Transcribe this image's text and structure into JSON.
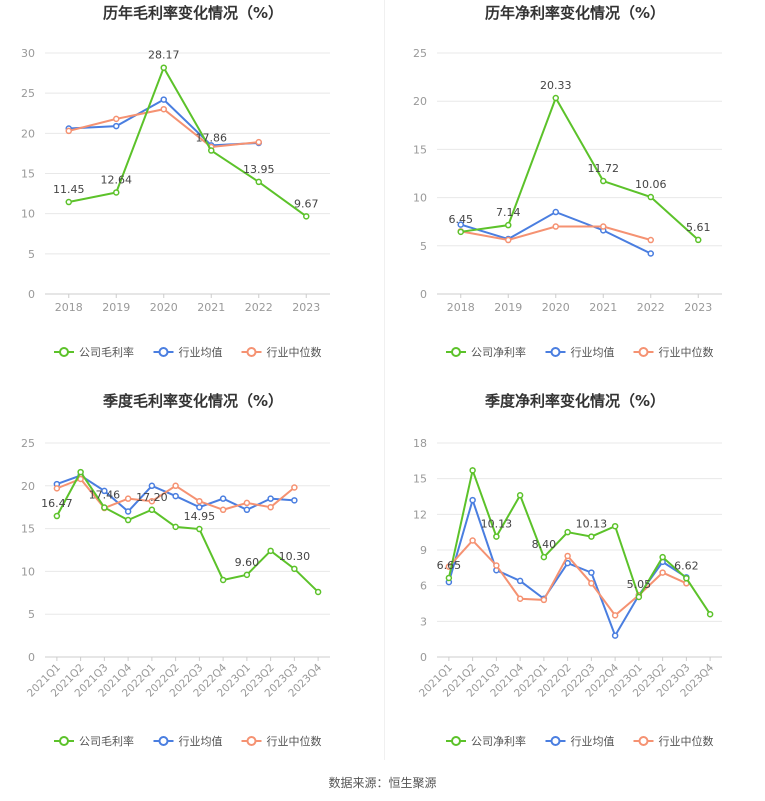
{
  "colors": {
    "company": "#5cc22a",
    "industry_avg": "#4a7ee0",
    "industry_median": "#f59272",
    "grid": "#e8e8e8",
    "axis_text": "#999999",
    "title_text": "#333333"
  },
  "legend": {
    "company_gross": "公司毛利率",
    "company_net": "公司净利率",
    "avg": "行业均值",
    "median": "行业中位数"
  },
  "footer": "数据来源：恒生聚源",
  "chart_data": [
    {
      "id": "annual-gross",
      "type": "line",
      "title": "历年毛利率变化情况（%）",
      "categories": [
        "2018",
        "2019",
        "2020",
        "2021",
        "2022",
        "2023"
      ],
      "ylim": [
        0,
        30
      ],
      "yticks": [
        0,
        5,
        10,
        15,
        20,
        25,
        30
      ],
      "grid": true,
      "legend_position": "bottom",
      "series": [
        {
          "name": "公司毛利率",
          "role": "company",
          "values": [
            11.45,
            12.64,
            28.17,
            17.86,
            13.95,
            9.67
          ],
          "labels": [
            "11.45",
            "12.64",
            "28.17",
            "17.86",
            "13.95",
            "9.67"
          ]
        },
        {
          "name": "行业均值",
          "role": "avg",
          "values": [
            20.6,
            20.9,
            24.2,
            18.5,
            18.8,
            null
          ]
        },
        {
          "name": "行业中位数",
          "role": "median",
          "values": [
            20.3,
            21.8,
            23.0,
            18.3,
            18.9,
            null
          ]
        }
      ]
    },
    {
      "id": "annual-net",
      "type": "line",
      "title": "历年净利率变化情况（%）",
      "categories": [
        "2018",
        "2019",
        "2020",
        "2021",
        "2022",
        "2023"
      ],
      "ylim": [
        0,
        25
      ],
      "yticks": [
        0,
        5,
        10,
        15,
        20,
        25
      ],
      "grid": true,
      "legend_position": "bottom",
      "series": [
        {
          "name": "公司净利率",
          "role": "company",
          "values": [
            6.45,
            7.14,
            20.33,
            11.72,
            10.06,
            5.61
          ],
          "labels": [
            "6.45",
            "7.14",
            "20.33",
            "11.72",
            "10.06",
            "5.61"
          ]
        },
        {
          "name": "行业均值",
          "role": "avg",
          "values": [
            7.2,
            5.7,
            8.5,
            6.6,
            4.2,
            null
          ]
        },
        {
          "name": "行业中位数",
          "role": "median",
          "values": [
            6.5,
            5.6,
            7.0,
            7.0,
            5.6,
            null
          ]
        }
      ]
    },
    {
      "id": "quarterly-gross",
      "type": "line",
      "title": "季度毛利率变化情况（%）",
      "categories": [
        "2021Q1",
        "2021Q2",
        "2021Q3",
        "2021Q4",
        "2022Q1",
        "2022Q2",
        "2022Q3",
        "2022Q4",
        "2023Q1",
        "2023Q2",
        "2023Q3",
        "2023Q4"
      ],
      "ylim": [
        0,
        25
      ],
      "yticks": [
        0,
        5,
        10,
        15,
        20,
        25
      ],
      "grid": true,
      "legend_position": "bottom",
      "series": [
        {
          "name": "公司毛利率",
          "role": "company",
          "values": [
            16.47,
            21.6,
            17.46,
            16.0,
            17.2,
            15.2,
            14.95,
            9.0,
            9.6,
            12.4,
            10.3,
            7.6
          ],
          "labels": [
            "16.47",
            null,
            "17.46",
            null,
            "17.20",
            null,
            "14.95",
            null,
            "9.60",
            null,
            "10.30",
            null
          ]
        },
        {
          "name": "行业均值",
          "role": "avg",
          "values": [
            20.2,
            21.2,
            19.4,
            17.0,
            20.0,
            18.8,
            17.5,
            18.5,
            17.2,
            18.5,
            18.3,
            null
          ]
        },
        {
          "name": "行业中位数",
          "role": "median",
          "values": [
            19.7,
            20.8,
            17.4,
            18.5,
            18.2,
            20.0,
            18.2,
            17.2,
            18.0,
            17.5,
            19.8,
            null
          ]
        }
      ]
    },
    {
      "id": "quarterly-net",
      "type": "line",
      "title": "季度净利率变化情况（%）",
      "categories": [
        "2021Q1",
        "2021Q2",
        "2021Q3",
        "2021Q4",
        "2022Q1",
        "2022Q2",
        "2022Q3",
        "2022Q4",
        "2023Q1",
        "2023Q2",
        "2023Q3",
        "2023Q4"
      ],
      "ylim": [
        0,
        18
      ],
      "yticks": [
        0,
        3,
        6,
        9,
        12,
        15,
        18
      ],
      "grid": true,
      "legend_position": "bottom",
      "series": [
        {
          "name": "公司净利率",
          "role": "company",
          "values": [
            6.65,
            15.7,
            10.13,
            13.6,
            8.4,
            10.5,
            10.13,
            11.0,
            5.05,
            8.4,
            6.62,
            3.6
          ],
          "labels": [
            "6.65",
            null,
            "10.13",
            null,
            "8.40",
            null,
            "10.13",
            null,
            "5.05",
            null,
            "6.62",
            null
          ]
        },
        {
          "name": "行业均值",
          "role": "avg",
          "values": [
            6.3,
            13.2,
            7.3,
            6.4,
            4.9,
            7.9,
            7.1,
            1.8,
            5.2,
            8.0,
            6.7,
            null
          ]
        },
        {
          "name": "行业中位数",
          "role": "median",
          "values": [
            7.6,
            9.8,
            7.7,
            4.9,
            4.8,
            8.5,
            6.2,
            3.5,
            5.2,
            7.1,
            6.2,
            null
          ]
        }
      ]
    }
  ]
}
